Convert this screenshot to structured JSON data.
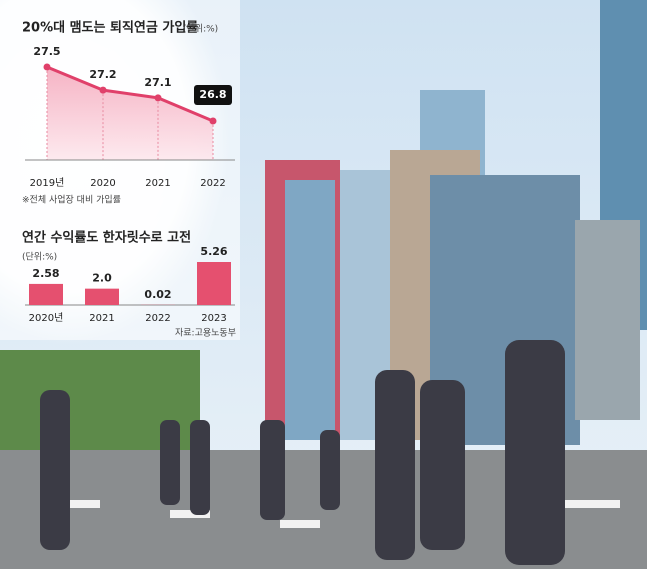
{
  "chart_data": [
    {
      "type": "line",
      "title": "20%대 맴도는 퇴직연금 가입률",
      "unit": "(단위:%)",
      "categories": [
        "2019년",
        "2020",
        "2021",
        "2022"
      ],
      "values": [
        27.5,
        27.2,
        27.1,
        26.8
      ],
      "color": "#e0406a",
      "note": "※전체 사업장 대비 가입률"
    },
    {
      "type": "bar",
      "title": "연간 수익률도 한자릿수로 고전",
      "unit": "(단위:%)",
      "categories": [
        "2020년",
        "2021",
        "2022",
        "2023"
      ],
      "values": [
        2.58,
        2.0,
        0.02,
        5.26
      ],
      "value_labels": [
        "2.58",
        "2.0",
        "0.02",
        "5.26"
      ],
      "color": "#e5506f",
      "source": "자료:고용노동부"
    }
  ]
}
